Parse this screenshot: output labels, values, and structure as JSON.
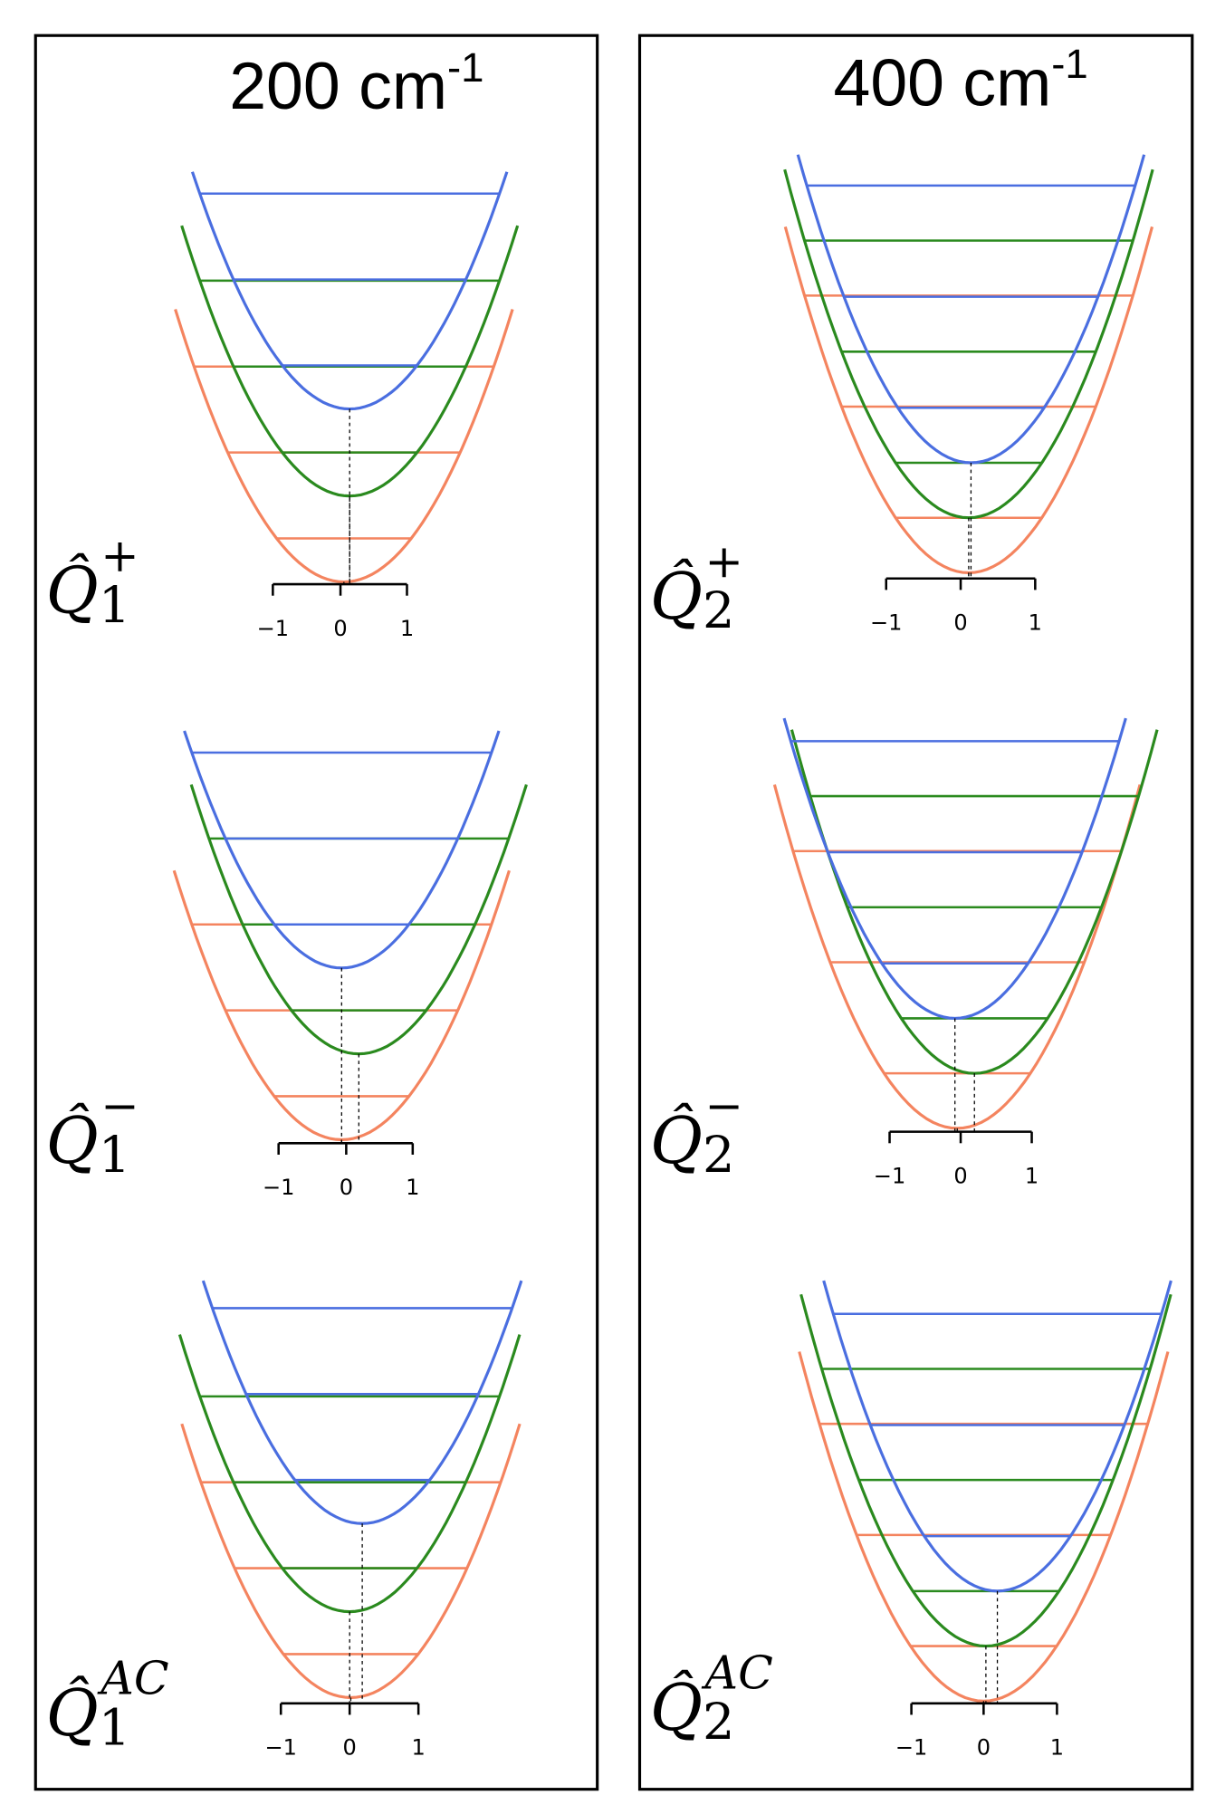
{
  "panels": [
    {
      "title": {
        "text": "200 cm",
        "superscript": "-1"
      },
      "plots": [
        {
          "label": {
            "symbol": "Q̂",
            "subscript": "1",
            "superscript": "+"
          },
          "ticks": [
            "−1",
            "0",
            "1"
          ]
        },
        {
          "label": {
            "symbol": "Q̂",
            "subscript": "1",
            "superscript": "−"
          },
          "ticks": [
            "−1",
            "0",
            "1"
          ]
        },
        {
          "label": {
            "symbol": "Q̂",
            "subscript": "1",
            "superscript": "AC"
          },
          "ticks": [
            "−1",
            "0",
            "1"
          ]
        }
      ]
    },
    {
      "title": {
        "text": "400 cm",
        "superscript": "-1"
      },
      "plots": [
        {
          "label": {
            "symbol": "Q̂",
            "subscript": "2",
            "superscript": "+"
          },
          "ticks": [
            "−1",
            "0",
            "1"
          ]
        },
        {
          "label": {
            "symbol": "Q̂",
            "subscript": "2",
            "superscript": "−"
          },
          "ticks": [
            "−1",
            "0",
            "1"
          ]
        },
        {
          "label": {
            "symbol": "Q̂",
            "subscript": "2",
            "superscript": "AC"
          },
          "ticks": [
            "−1",
            "0",
            "1"
          ]
        }
      ]
    }
  ]
}
